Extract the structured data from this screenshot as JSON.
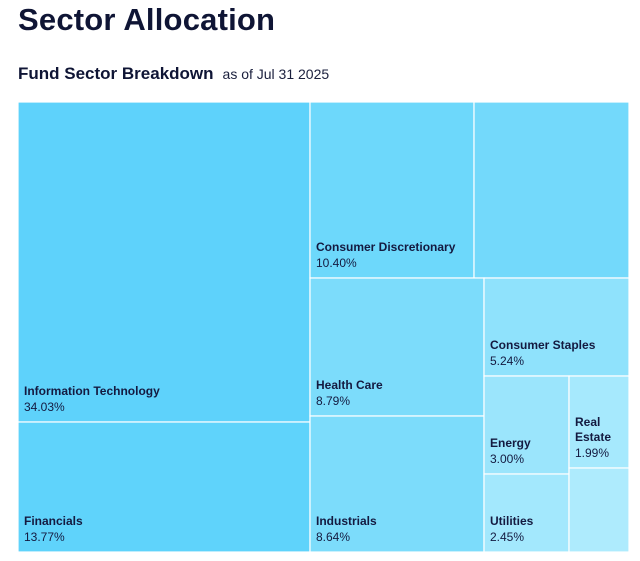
{
  "page": {
    "title": "Sector Allocation"
  },
  "chart_data": {
    "type": "treemap",
    "title": "Fund Sector Breakdown",
    "as_of": "as of Jul 31 2025",
    "items": [
      {
        "name": "Information Technology",
        "value": 34.03,
        "value_label": "34.03%",
        "color": "#5ed2fb"
      },
      {
        "name": "Financials",
        "value": 13.77,
        "value_label": "13.77%",
        "color": "#5fd3fb"
      },
      {
        "name": "Consumer Discretionary",
        "value": 10.4,
        "value_label": "10.40%",
        "color": "#6dd8fb"
      },
      {
        "name": "",
        "value": 10.0,
        "value_label": "",
        "color": "#73d9fb"
      },
      {
        "name": "Health Care",
        "value": 8.79,
        "value_label": "8.79%",
        "color": "#7cdcfb"
      },
      {
        "name": "Industrials",
        "value": 8.64,
        "value_label": "8.64%",
        "color": "#7cdcfb"
      },
      {
        "name": "Consumer Staples",
        "value": 5.24,
        "value_label": "5.24%",
        "color": "#8fe2fc"
      },
      {
        "name": "Energy",
        "value": 3.0,
        "value_label": "3.00%",
        "color": "#9be5fc"
      },
      {
        "name": "Utilities",
        "value": 2.45,
        "value_label": "2.45%",
        "color": "#a3e8fd"
      },
      {
        "name": "Real Estate",
        "value": 1.99,
        "value_label": "1.99%",
        "color": "#a6e9fd"
      },
      {
        "name": "",
        "value": 1.69,
        "value_label": "",
        "color": "#aeebfd"
      }
    ]
  }
}
